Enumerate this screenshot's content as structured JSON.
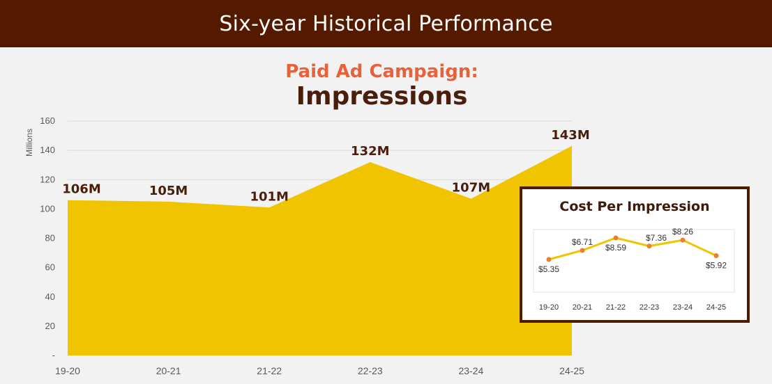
{
  "header": {
    "title": "Six-year Historical Performance"
  },
  "chart_data": [
    {
      "type": "area",
      "subtitle": "Paid Ad Campaign:",
      "title": "Impressions",
      "ylabel": "Millions",
      "xlabel": "",
      "categories": [
        "19-20",
        "20-21",
        "21-22",
        "22-23",
        "23-24",
        "24-25"
      ],
      "values": [
        106,
        105,
        101,
        132,
        107,
        143
      ],
      "data_labels": [
        "106M",
        "105M",
        "101M",
        "132M",
        "107M",
        "143M"
      ],
      "ylim": [
        0,
        160
      ],
      "yticks": [
        0,
        20,
        40,
        60,
        80,
        100,
        120,
        140,
        160
      ],
      "ytick_labels": [
        "-",
        "20",
        "40",
        "60",
        "80",
        "100",
        "120",
        "140",
        "160"
      ],
      "grid": true,
      "colors": {
        "fill": "#f0c400",
        "label": "#4a1e0c",
        "grid": "#d9d9d9",
        "axis": "#595959"
      }
    },
    {
      "type": "line",
      "title": "Cost Per Impression",
      "categories": [
        "19-20",
        "20-21",
        "21-22",
        "22-23",
        "23-24",
        "24-25"
      ],
      "values": [
        5.35,
        6.71,
        8.59,
        7.36,
        8.26,
        5.92
      ],
      "data_labels": [
        "$5.35",
        "$6.71",
        "$8.59",
        "$7.36",
        "$8.26",
        "$5.92"
      ],
      "colors": {
        "line": "#f0c400",
        "marker": "#ee7d31",
        "label": "#333333"
      }
    }
  ]
}
